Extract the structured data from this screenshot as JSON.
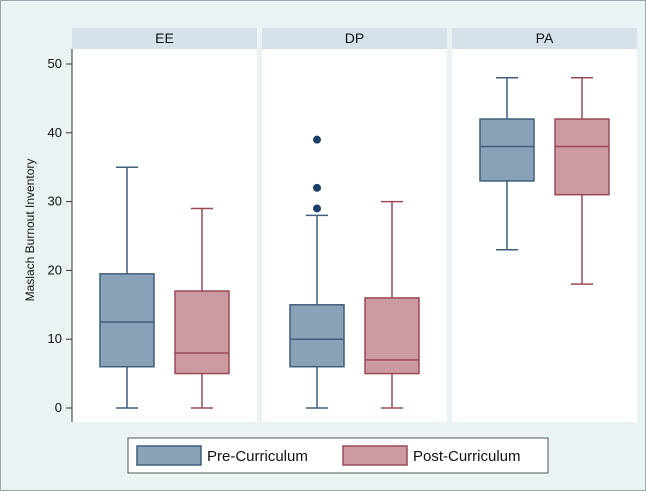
{
  "chart_data": {
    "type": "box",
    "ylabel": "Maslach Burnout Inventory",
    "ylim": [
      0,
      50
    ],
    "yticks": [
      0,
      10,
      20,
      30,
      40,
      50
    ],
    "grid": false,
    "legend_position": "bottom",
    "series": [
      {
        "name": "Pre-Curriculum",
        "color": "#8aa2b8",
        "stroke": "#3f5f7d"
      },
      {
        "name": "Post-Curriculum",
        "color": "#cc9aa3",
        "stroke": "#9a4a55"
      }
    ],
    "panels": [
      {
        "label": "EE",
        "boxes": [
          {
            "series": "Pre-Curriculum",
            "min": 0,
            "q1": 6,
            "median": 12.5,
            "q3": 19.5,
            "max": 35,
            "outliers": []
          },
          {
            "series": "Post-Curriculum",
            "min": 0,
            "q1": 5,
            "median": 8,
            "q3": 17,
            "max": 29,
            "outliers": []
          }
        ]
      },
      {
        "label": "DP",
        "boxes": [
          {
            "series": "Pre-Curriculum",
            "min": 0,
            "q1": 6,
            "median": 10,
            "q3": 15,
            "max": 28,
            "outliers": [
              29,
              32,
              39
            ]
          },
          {
            "series": "Post-Curriculum",
            "min": 0,
            "q1": 5,
            "median": 7,
            "q3": 16,
            "max": 30,
            "outliers": []
          }
        ]
      },
      {
        "label": "PA",
        "boxes": [
          {
            "series": "Pre-Curriculum",
            "min": 23,
            "q1": 33,
            "median": 38,
            "q3": 42,
            "max": 48,
            "outliers": []
          },
          {
            "series": "Post-Curriculum",
            "min": 18,
            "q1": 31,
            "median": 38,
            "q3": 42,
            "max": 48,
            "outliers": []
          }
        ]
      }
    ]
  }
}
